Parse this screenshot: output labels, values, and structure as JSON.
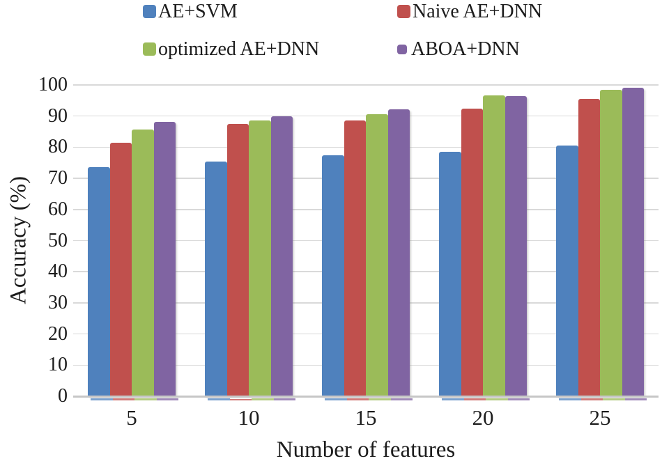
{
  "chart_data": {
    "type": "bar",
    "title": "",
    "xlabel": "Number of features",
    "ylabel": "Accuracy (%)",
    "categories": [
      "5",
      "10",
      "15",
      "20",
      "25"
    ],
    "series": [
      {
        "name": "AE+SVM",
        "color": "#4F81BD",
        "values": [
          73.5,
          75.5,
          77.5,
          78.5,
          80.5
        ]
      },
      {
        "name": "Naive AE+DNN",
        "color": "#C0504D",
        "values": [
          81.5,
          87.5,
          88.6,
          92.5,
          95.5
        ]
      },
      {
        "name": "optimized AE+DNN",
        "color": "#9BBB59",
        "values": [
          85.6,
          88.7,
          90.7,
          96.6,
          98.5
        ]
      },
      {
        "name": "ABOA+DNN",
        "color": "#8064A2",
        "values": [
          88.1,
          90.0,
          92.2,
          96.5,
          99.0
        ]
      }
    ],
    "ylim": [
      0,
      100
    ],
    "ytick_step": 10,
    "yticks": [
      "0",
      "10",
      "20",
      "30",
      "40",
      "50",
      "60",
      "70",
      "80",
      "90",
      "100"
    ],
    "grid": "horizontal",
    "legend_position": "top",
    "gridline_color": "#D9D9D9",
    "axis_line_color": "#C6C6C6",
    "text_color": "#1C1C1C",
    "background_color": "#FFFFFF"
  }
}
